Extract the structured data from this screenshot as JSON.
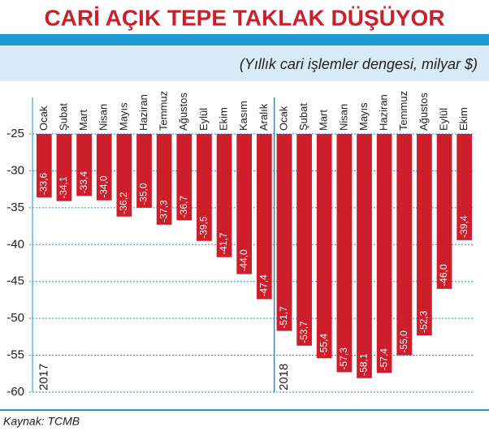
{
  "chart_data": {
    "type": "bar",
    "title": "CARİ AÇIK TEPE TAKLAK DÜŞÜYOR",
    "subtitle": "(Yıllık cari işlemler dengesi, milyar $)",
    "source": "Kaynak: TCMB",
    "annotations": [
      "2017",
      "2018"
    ],
    "categories": [
      "Ocak",
      "Şubat",
      "Mart",
      "Nisan",
      "Mayıs",
      "Haziran",
      "Temmuz",
      "Ağustos",
      "Eylül",
      "Ekim",
      "Kasım",
      "Aralık",
      "Ocak",
      "Şubat",
      "Mart",
      "Nisan",
      "Mayıs",
      "Haziran",
      "Temmuz",
      "Ağustos",
      "Eylül",
      "Ekim"
    ],
    "values": [
      -33.6,
      -34.1,
      -33.4,
      -34.0,
      -36.2,
      -35.0,
      -37.3,
      -36.7,
      -39.5,
      -41.7,
      -44.0,
      -47.4,
      -51.7,
      -53.7,
      -55.4,
      -57.3,
      -58.1,
      -57.4,
      -55.0,
      -52.3,
      -46.0,
      -39.4
    ],
    "value_labels": [
      "-33,6",
      "-34,1",
      "-33,4",
      "-34,0",
      "-36,2",
      "-35,0",
      "-37,3",
      "-36,7",
      "-39,5",
      "-41,7",
      "-44,0",
      "-47,4",
      "-51,7",
      "-53,7",
      "-55,4",
      "-57,3",
      "-58,1",
      "-57,4",
      "-55,0",
      "-52,3",
      "-46,0",
      "-39,4"
    ],
    "color": "#cc1f2b",
    "ylim": [
      -60,
      -25
    ],
    "yticks": [
      -25,
      -30,
      -35,
      -40,
      -45,
      -50,
      -55,
      -60
    ],
    "grid": true
  }
}
